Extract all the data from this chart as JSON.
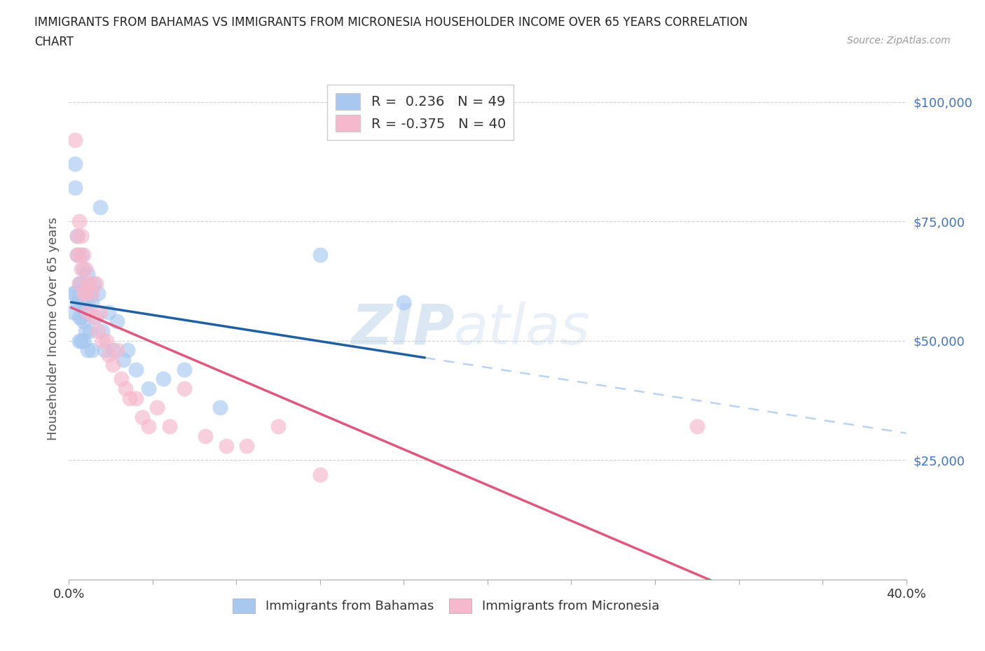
{
  "title_line1": "IMMIGRANTS FROM BAHAMAS VS IMMIGRANTS FROM MICRONESIA HOUSEHOLDER INCOME OVER 65 YEARS CORRELATION",
  "title_line2": "CHART",
  "source_text": "Source: ZipAtlas.com",
  "ylabel": "Householder Income Over 65 years",
  "bahamas_R": 0.236,
  "bahamas_N": 49,
  "micronesia_R": -0.375,
  "micronesia_N": 40,
  "bahamas_color": "#A8C8F0",
  "micronesia_color": "#F5B8CC",
  "bahamas_line_color": "#2060A0",
  "micronesia_line_color": "#E05880",
  "background_color": "#FFFFFF",
  "watermark_zip": "ZIP",
  "watermark_atlas": "atlas",
  "xmin": 0.0,
  "xmax": 0.4,
  "ymin": 0,
  "ymax": 105000,
  "yticks": [
    25000,
    50000,
    75000,
    100000
  ],
  "ytick_labels": [
    "$25,000",
    "$50,000",
    "$75,000",
    "$100,000"
  ],
  "xticks": [
    0.0,
    0.04,
    0.08,
    0.12,
    0.16,
    0.2,
    0.24,
    0.28,
    0.32,
    0.36,
    0.4
  ],
  "xtick_labels": [
    "0.0%",
    "",
    "",
    "",
    "",
    "",
    "",
    "",
    "",
    "",
    "40.0%"
  ],
  "bahamas_x": [
    0.002,
    0.002,
    0.003,
    0.003,
    0.003,
    0.004,
    0.004,
    0.004,
    0.005,
    0.005,
    0.005,
    0.005,
    0.006,
    0.006,
    0.006,
    0.006,
    0.006,
    0.007,
    0.007,
    0.007,
    0.007,
    0.008,
    0.008,
    0.008,
    0.009,
    0.009,
    0.009,
    0.01,
    0.01,
    0.011,
    0.011,
    0.012,
    0.013,
    0.014,
    0.015,
    0.016,
    0.017,
    0.019,
    0.021,
    0.023,
    0.026,
    0.028,
    0.032,
    0.038,
    0.045,
    0.055,
    0.072,
    0.12,
    0.16
  ],
  "bahamas_y": [
    56000,
    60000,
    82000,
    87000,
    60000,
    72000,
    68000,
    58000,
    62000,
    60000,
    55000,
    50000,
    68000,
    62000,
    58000,
    55000,
    50000,
    65000,
    58000,
    54000,
    50000,
    60000,
    56000,
    52000,
    64000,
    58000,
    48000,
    60000,
    52000,
    58000,
    48000,
    62000,
    55000,
    60000,
    78000,
    52000,
    48000,
    56000,
    48000,
    54000,
    46000,
    48000,
    44000,
    40000,
    42000,
    44000,
    36000,
    68000,
    58000
  ],
  "micronesia_x": [
    0.003,
    0.004,
    0.004,
    0.005,
    0.005,
    0.005,
    0.006,
    0.006,
    0.007,
    0.007,
    0.008,
    0.008,
    0.009,
    0.009,
    0.01,
    0.011,
    0.012,
    0.013,
    0.014,
    0.015,
    0.016,
    0.018,
    0.019,
    0.021,
    0.023,
    0.025,
    0.027,
    0.029,
    0.032,
    0.035,
    0.038,
    0.042,
    0.048,
    0.055,
    0.065,
    0.075,
    0.085,
    0.1,
    0.12,
    0.3
  ],
  "micronesia_y": [
    92000,
    72000,
    68000,
    75000,
    68000,
    62000,
    72000,
    65000,
    68000,
    60000,
    65000,
    60000,
    62000,
    56000,
    62000,
    60000,
    55000,
    62000,
    52000,
    56000,
    50000,
    50000,
    47000,
    45000,
    48000,
    42000,
    40000,
    38000,
    38000,
    34000,
    32000,
    36000,
    32000,
    40000,
    30000,
    28000,
    28000,
    32000,
    22000,
    32000
  ],
  "dashed_color": "#A8C8F0"
}
